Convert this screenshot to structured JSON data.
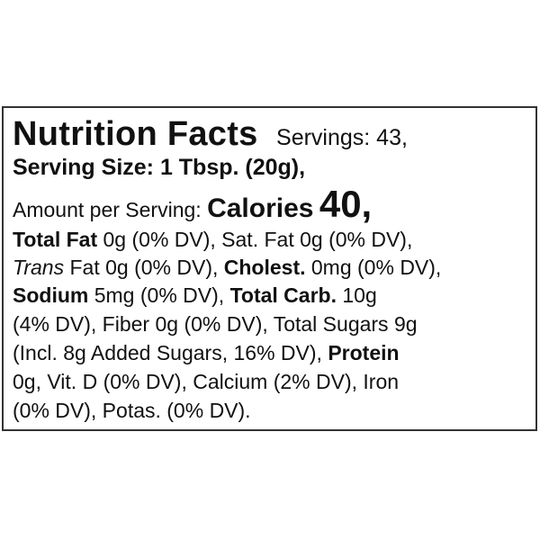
{
  "label": {
    "title": "Nutrition Facts",
    "servings": "Servings: 43,",
    "serving_size": "Serving Size: 1 Tbsp. (20g),",
    "amount_per_serving": "Amount per Serving:",
    "calories_label": "Calories",
    "calories_value": "40,",
    "total_fat_label": "Total Fat",
    "total_fat_value": "0g (0% DV), Sat. Fat 0g (0% DV),",
    "trans_label": "Trans",
    "trans_value": "Fat 0g (0% DV),",
    "cholest_label": "Cholest.",
    "cholest_value": "0mg (0% DV),",
    "sodium_label": "Sodium",
    "sodium_value": "5mg (0% DV),",
    "carb_label": "Total Carb.",
    "carb_value": "10g",
    "line5": "(4% DV), Fiber 0g (0% DV), Total Sugars 9g",
    "line6": "(Incl. 8g Added Sugars, 16% DV),",
    "protein_label": "Protein",
    "line7": "0g, Vit. D (0% DV), Calcium (2% DV), Iron",
    "line8": "(0% DV), Potas. (0% DV)."
  }
}
